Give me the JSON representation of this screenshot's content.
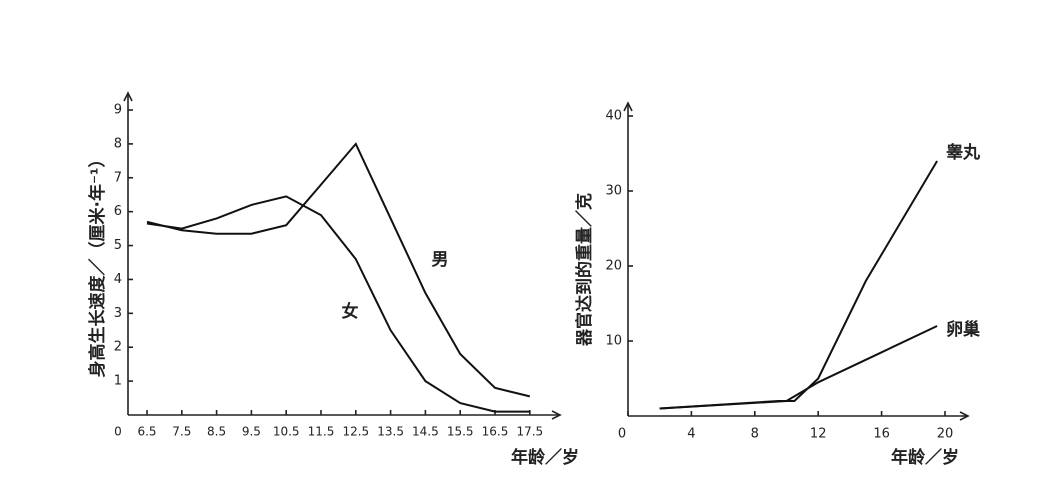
{
  "chart_data": [
    {
      "type": "line",
      "x_label": "年龄／岁",
      "y_label": "身高生长速度／（厘米·年⁻¹）",
      "categories": [
        "0",
        "6.5",
        "7.5",
        "8.5",
        "9.5",
        "10.5",
        "11.5",
        "12.5",
        "13.5",
        "14.5",
        "15.5",
        "16.5",
        "17.5"
      ],
      "ylim": [
        0,
        9.6
      ],
      "yticks": [
        1,
        2,
        3,
        4,
        5,
        6,
        7,
        8,
        9
      ],
      "series": [
        {
          "name": "男",
          "color": "#111111",
          "values": [
            null,
            5.7,
            5.45,
            5.35,
            5.35,
            5.6,
            6.8,
            8.0,
            5.8,
            3.6,
            1.8,
            0.8,
            0.55
          ]
        },
        {
          "name": "女",
          "color": "#111111",
          "values": [
            null,
            5.65,
            5.5,
            5.8,
            6.2,
            6.45,
            5.9,
            4.6,
            2.5,
            1.0,
            0.35,
            0.1,
            0.1
          ]
        }
      ]
    },
    {
      "type": "line",
      "x_label": "年龄／岁",
      "y_label": "器官达到的重量／克",
      "xlim": [
        0,
        21
      ],
      "xticks": [
        0,
        4,
        8,
        12,
        16,
        20
      ],
      "ylim": [
        0,
        40
      ],
      "yticks": [
        10,
        20,
        30,
        40
      ],
      "series": [
        {
          "name": "睾丸",
          "color": "#111111",
          "x": [
            2,
            9.5,
            10.5,
            12,
            15,
            19.5
          ],
          "values": [
            1,
            2,
            2,
            5,
            18,
            34
          ]
        },
        {
          "name": "卵巢",
          "color": "#111111",
          "x": [
            2,
            10,
            12,
            16,
            19.5
          ],
          "values": [
            1,
            2,
            4.5,
            8.5,
            12
          ]
        }
      ]
    }
  ]
}
